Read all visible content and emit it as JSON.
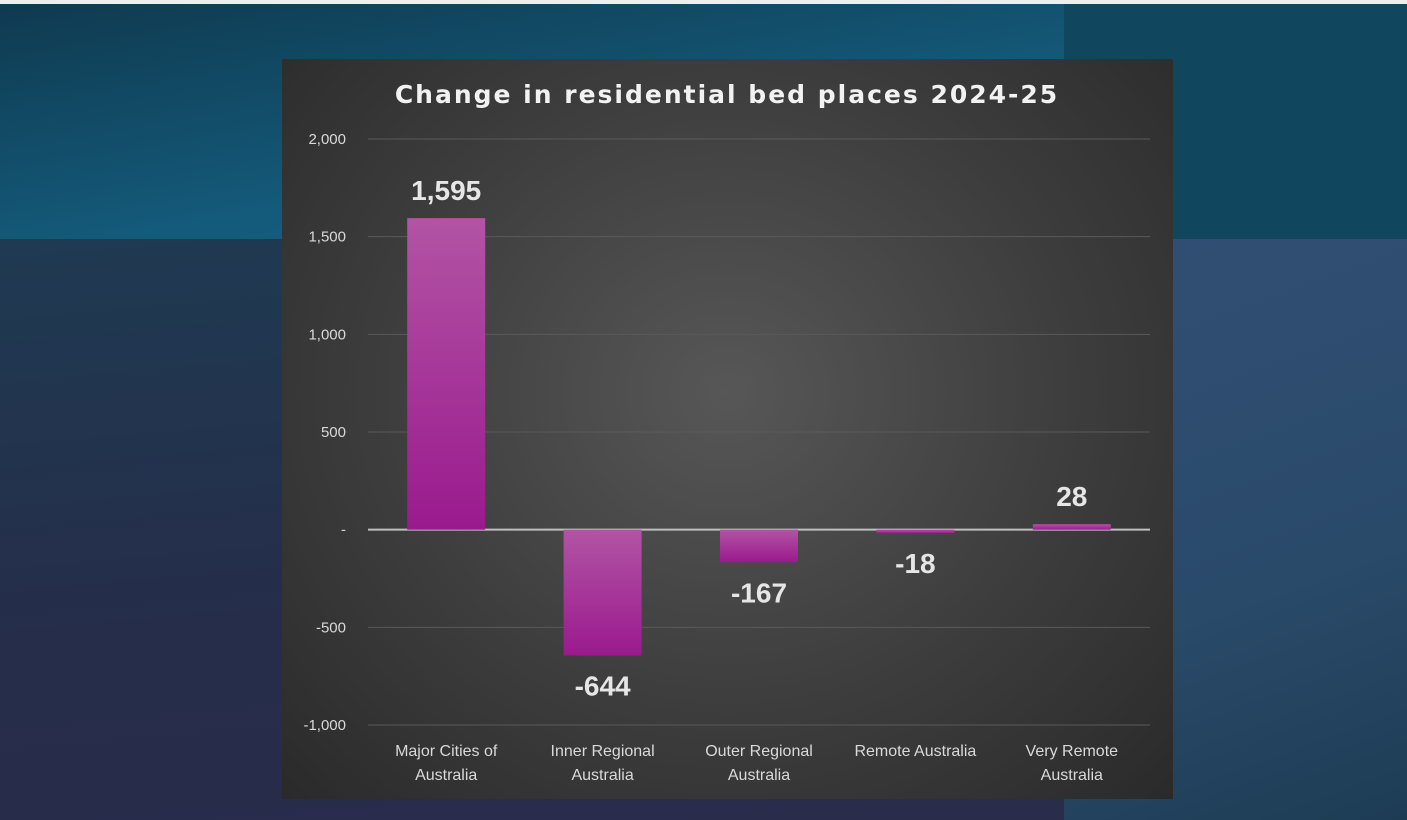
{
  "chart_data": {
    "type": "bar",
    "title": "Change in residential bed places 2024-25",
    "categories": [
      [
        "Major Cities of",
        "Australia"
      ],
      [
        "Inner Regional",
        "Australia"
      ],
      [
        "Outer Regional",
        "Australia"
      ],
      [
        "Remote Australia"
      ],
      [
        "Very Remote",
        "Australia"
      ]
    ],
    "values": [
      1595,
      -644,
      -167,
      -18,
      28
    ],
    "data_labels": [
      "1,595",
      "-644",
      "-167",
      "-18",
      "28"
    ],
    "ylim": [
      -1000,
      2000
    ],
    "yticks": [
      2000,
      1500,
      1000,
      500,
      0,
      -500,
      -1000
    ],
    "ytick_labels": [
      "2,000",
      "1,500",
      "1,000",
      "500",
      "-",
      "-500",
      "-1,000"
    ],
    "grid": true,
    "legend": "none",
    "colors": {
      "bar_top": "#b254a4",
      "bar_bottom": "#9a1a8e",
      "panel": "#3d3d3d"
    }
  }
}
